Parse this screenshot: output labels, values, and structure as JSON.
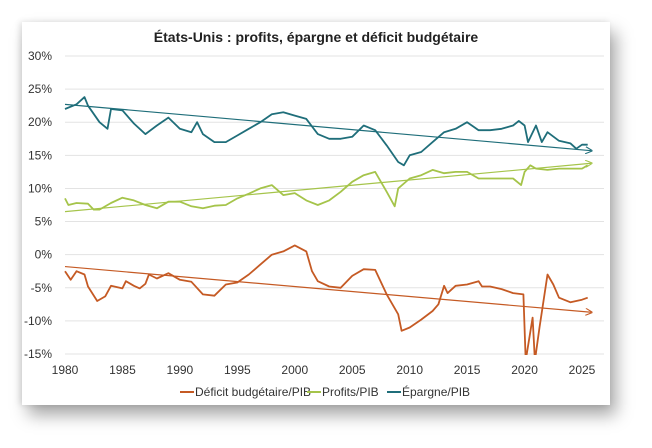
{
  "chart_data": {
    "type": "line",
    "title": "États-Unis : profits, épargne et déficit budgétaire",
    "xlabel": "",
    "ylabel": "",
    "xlim": [
      1980,
      2026
    ],
    "ylim": [
      -15,
      30
    ],
    "x_ticks": [
      "1980",
      "1985",
      "1990",
      "1995",
      "2000",
      "2005",
      "2010",
      "2015",
      "2020",
      "2025"
    ],
    "y_ticks": [
      "30%",
      "25%",
      "20%",
      "15%",
      "10%",
      "5%",
      "0%",
      "-5%",
      "-10%",
      "-15%"
    ],
    "grid": true,
    "legend_position": "bottom",
    "series": [
      {
        "name": "Déficit budgétaire/PIB",
        "color": "#C55A24",
        "x": [
          1980,
          1980.5,
          1981,
          1981.7,
          1982,
          1982.8,
          1983.5,
          1984,
          1985,
          1985.3,
          1986,
          1986.5,
          1987,
          1987.3,
          1988,
          1989,
          1990,
          1991,
          1992,
          1993,
          1994,
          1995,
          1996,
          1997,
          1998,
          1999,
          2000,
          2001,
          2001.5,
          2002,
          2003,
          2004,
          2005,
          2006,
          2007,
          2008,
          2009,
          2009.3,
          2010,
          2011,
          2012,
          2012.5,
          2013,
          2013.3,
          2014,
          2015,
          2016,
          2016.3,
          2017,
          2018,
          2019,
          2019.9,
          2020.1,
          2020.7,
          2020.9,
          2021.3,
          2022,
          2022.5,
          2023,
          2024,
          2025,
          2025.5
        ],
        "y": [
          -2.5,
          -3.8,
          -2.5,
          -3,
          -4.8,
          -7,
          -6.3,
          -4.7,
          -5.1,
          -4,
          -4.7,
          -5.1,
          -4.4,
          -3,
          -3.6,
          -2.8,
          -3.8,
          -4.1,
          -6,
          -6.2,
          -4.5,
          -4.2,
          -3,
          -1.5,
          0,
          0.5,
          1.4,
          0.5,
          -2.5,
          -4,
          -4.8,
          -5,
          -3.2,
          -2.2,
          -2.3,
          -6,
          -9,
          -11.5,
          -11,
          -9.8,
          -8.5,
          -7.5,
          -4.7,
          -5.8,
          -4.7,
          -4.5,
          -4,
          -4.8,
          -4.8,
          -5.2,
          -5.8,
          -6,
          -16,
          -9.5,
          -16,
          -11,
          -3,
          -4.5,
          -6.5,
          -7.2,
          -6.8,
          -6.5
        ],
        "trend": [
          [
            1980,
            -1.8
          ],
          [
            2025.8,
            -8.7
          ]
        ]
      },
      {
        "name": "Profits/PIB",
        "color": "#A5C44A",
        "x": [
          1980,
          1980.3,
          1981,
          1982,
          1982.5,
          1983,
          1984,
          1985,
          1986,
          1987,
          1988,
          1989,
          1990,
          1991,
          1992,
          1993,
          1994,
          1995,
          1996,
          1997,
          1998,
          1999,
          2000,
          2001,
          2002,
          2003,
          2004,
          2005,
          2006,
          2007,
          2007.5,
          2008,
          2008.7,
          2009,
          2010,
          2011,
          2012,
          2013,
          2014,
          2015,
          2016,
          2017,
          2018,
          2019,
          2019.7,
          2020,
          2020.5,
          2021,
          2022,
          2023,
          2024,
          2025,
          2025.5
        ],
        "y": [
          8.5,
          7.5,
          7.8,
          7.7,
          6.8,
          6.8,
          7.8,
          8.6,
          8.2,
          7.5,
          7,
          8,
          8,
          7.3,
          7,
          7.4,
          7.5,
          8.5,
          9.2,
          10,
          10.5,
          9,
          9.3,
          8.2,
          7.5,
          8.2,
          9.5,
          11,
          12,
          12.5,
          11,
          9.5,
          7.3,
          10,
          11.5,
          12,
          12.8,
          12.3,
          12.5,
          12.5,
          11.5,
          11.5,
          11.5,
          11.5,
          10.5,
          12.5,
          13.5,
          13,
          12.8,
          13,
          13,
          13,
          13.5
        ],
        "trend": [
          [
            1980,
            6.5
          ],
          [
            2025.8,
            13.8
          ]
        ]
      },
      {
        "name": "Épargne/PIB",
        "color": "#1F6E7A",
        "x": [
          1980,
          1981,
          1981.7,
          1982,
          1983,
          1983.7,
          1984,
          1985,
          1986,
          1987,
          1988,
          1989,
          1990,
          1991,
          1991.5,
          1992,
          1993,
          1994,
          1995,
          1996,
          1997,
          1998,
          1999,
          2000,
          2001,
          2002,
          2003,
          2004,
          2005,
          2006,
          2007,
          2008,
          2009,
          2009.5,
          2010,
          2011,
          2012,
          2013,
          2014,
          2015,
          2016,
          2017,
          2018,
          2019,
          2019.5,
          2020,
          2020.3,
          2021,
          2021.5,
          2022,
          2023,
          2024,
          2024.5,
          2025,
          2025.5
        ],
        "y": [
          22,
          22.7,
          23.8,
          22.5,
          20,
          19,
          22,
          21.8,
          19.8,
          18.2,
          19.5,
          20.7,
          19,
          18.5,
          20,
          18.2,
          17,
          17,
          18,
          19,
          20,
          21.2,
          21.5,
          21,
          20.5,
          18.2,
          17.5,
          17.5,
          17.8,
          19.5,
          18.8,
          16.5,
          14,
          13.5,
          15,
          15.5,
          17,
          18.5,
          19,
          20,
          18.8,
          18.8,
          19,
          19.5,
          20.2,
          19.5,
          17,
          19.5,
          17,
          18.5,
          17.2,
          16.8,
          16,
          16.6,
          16.6
        ],
        "trend": [
          [
            1980,
            22.7
          ],
          [
            2025.8,
            15.7
          ]
        ]
      }
    ]
  }
}
